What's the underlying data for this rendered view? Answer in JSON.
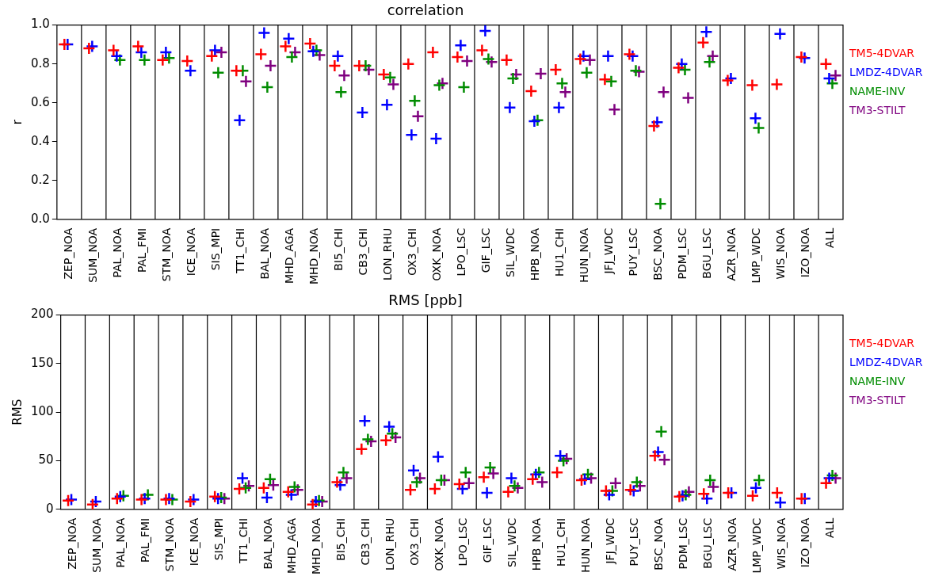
{
  "chart_data": [
    {
      "type": "scatter",
      "title": "correlation",
      "ylabel": "r",
      "categories": [
        "ZEP_NOA",
        "SUM_NOA",
        "PAL_NOA",
        "PAL_FMI",
        "STM_NOA",
        "ICE_NOA",
        "SIS_MPI",
        "TT1_CHI",
        "BAL_NOA",
        "MHD_AGA",
        "MHD_NOA",
        "BI5_CHI",
        "CB3_CHI",
        "LON_RHU",
        "OX3_CHI",
        "OXK_NOA",
        "LPO_LSC",
        "GIF_LSC",
        "SIL_WDC",
        "HPB_NOA",
        "HU1_CHI",
        "HUN_NOA",
        "JFJ_WDC",
        "PUY_LSC",
        "BSC_NOA",
        "PDM_LSC",
        "BGU_LSC",
        "AZR_NOA",
        "LMP_WDC",
        "WIS_NOA",
        "IZO_NOA",
        "ALL"
      ],
      "series": [
        {
          "name": "TM5-4DVAR",
          "color": "#ff0000",
          "values": [
            0.9,
            0.88,
            0.87,
            0.89,
            0.82,
            0.815,
            0.84,
            0.765,
            0.85,
            0.89,
            0.905,
            0.79,
            0.79,
            0.745,
            0.8,
            0.86,
            0.835,
            0.87,
            0.82,
            0.66,
            0.77,
            0.825,
            0.72,
            0.85,
            0.48,
            0.78,
            0.91,
            0.715,
            0.69,
            0.695,
            0.835,
            0.8
          ]
        },
        {
          "name": "LMDZ-4DVAR",
          "color": "#0000ff",
          "values": [
            0.9,
            0.89,
            0.84,
            0.86,
            0.86,
            0.765,
            0.87,
            0.51,
            0.96,
            0.93,
            0.865,
            0.84,
            0.55,
            0.59,
            0.435,
            0.415,
            0.895,
            0.97,
            0.575,
            0.505,
            0.575,
            0.84,
            0.84,
            0.84,
            0.5,
            0.8,
            0.965,
            0.725,
            0.52,
            0.955,
            0.83,
            0.725
          ]
        },
        {
          "name": "NAME-INV",
          "color": "#008c00",
          "values": [
            null,
            null,
            0.82,
            0.82,
            0.83,
            null,
            0.755,
            0.765,
            0.68,
            0.835,
            0.87,
            0.655,
            0.79,
            0.73,
            0.61,
            0.69,
            0.68,
            0.825,
            0.725,
            0.51,
            0.7,
            0.755,
            0.71,
            0.765,
            0.08,
            0.77,
            0.81,
            null,
            0.47,
            null,
            null,
            0.7
          ]
        },
        {
          "name": "TM3-STILT",
          "color": "#7f007f",
          "values": [
            null,
            null,
            null,
            null,
            null,
            null,
            0.86,
            0.71,
            0.79,
            0.86,
            0.845,
            0.74,
            0.77,
            0.695,
            0.53,
            0.7,
            0.815,
            0.81,
            0.745,
            0.75,
            0.655,
            0.82,
            0.565,
            0.76,
            0.655,
            0.625,
            0.84,
            null,
            null,
            null,
            null,
            0.74
          ]
        }
      ],
      "ylim": [
        0,
        1
      ],
      "yticks": [
        {
          "value": 0,
          "label": "0.0"
        },
        {
          "value": 0.2,
          "label": "0.2"
        },
        {
          "value": 0.4,
          "label": "0.4"
        },
        {
          "value": 0.6,
          "label": "0.6"
        },
        {
          "value": 0.8,
          "label": "0.8"
        },
        {
          "value": 1,
          "label": "1.0"
        }
      ],
      "grid": "x",
      "legend": "right",
      "marker": "cross"
    },
    {
      "type": "scatter",
      "title": "RMS [ppb]",
      "ylabel": "RMS",
      "categories": [
        "ZEP_NOA",
        "SUM_NOA",
        "PAL_NOA",
        "PAL_FMI",
        "STM_NOA",
        "ICE_NOA",
        "SIS_MPI",
        "TT1_CHI",
        "BAL_NOA",
        "MHD_AGA",
        "MHD_NOA",
        "BI5_CHI",
        "CB3_CHI",
        "LON_RHU",
        "OX3_CHI",
        "OXK_NOA",
        "LPO_LSC",
        "GIF_LSC",
        "SIL_WDC",
        "HPB_NOA",
        "HU1_CHI",
        "HUN_NOA",
        "JFJ_WDC",
        "PUY_LSC",
        "BSC_NOA",
        "PDM_LSC",
        "BGU_LSC",
        "AZR_NOA",
        "LMP_WDC",
        "WIS_NOA",
        "IZO_NOA",
        "ALL"
      ],
      "series": [
        {
          "name": "TM5-4DVAR",
          "color": "#ff0000",
          "values": [
            9,
            5,
            11,
            10,
            10,
            8,
            13,
            21,
            22,
            18,
            5,
            28,
            62,
            71,
            20,
            21,
            26,
            33,
            18,
            31,
            38,
            30,
            19,
            20,
            55,
            13,
            16,
            17,
            14,
            17,
            11,
            27
          ]
        },
        {
          "name": "LMDZ-4DVAR",
          "color": "#0000ff",
          "values": [
            10,
            8,
            13,
            11,
            11,
            10,
            11,
            32,
            12,
            15,
            8,
            25,
            91,
            85,
            40,
            54,
            21,
            17,
            32,
            36,
            55,
            31,
            15,
            19,
            59,
            14,
            11,
            17,
            22,
            7,
            11,
            32
          ]
        },
        {
          "name": "NAME-INV",
          "color": "#008c00",
          "values": [
            null,
            null,
            14,
            15,
            10,
            null,
            12,
            22,
            31,
            23,
            9,
            38,
            72,
            78,
            28,
            30,
            38,
            43,
            24,
            38,
            50,
            36,
            19,
            28,
            80,
            15,
            30,
            null,
            30,
            null,
            null,
            35
          ]
        },
        {
          "name": "TM3-STILT",
          "color": "#7f007f",
          "values": [
            null,
            null,
            null,
            null,
            null,
            null,
            11,
            24,
            25,
            20,
            8,
            32,
            70,
            74,
            32,
            30,
            27,
            37,
            22,
            28,
            52,
            32,
            27,
            24,
            51,
            18,
            23,
            null,
            null,
            null,
            null,
            32
          ]
        }
      ],
      "ylim": [
        0,
        200
      ],
      "yticks": [
        0,
        50,
        100,
        150,
        200
      ],
      "grid": "x",
      "legend": "right",
      "marker": "cross"
    }
  ]
}
